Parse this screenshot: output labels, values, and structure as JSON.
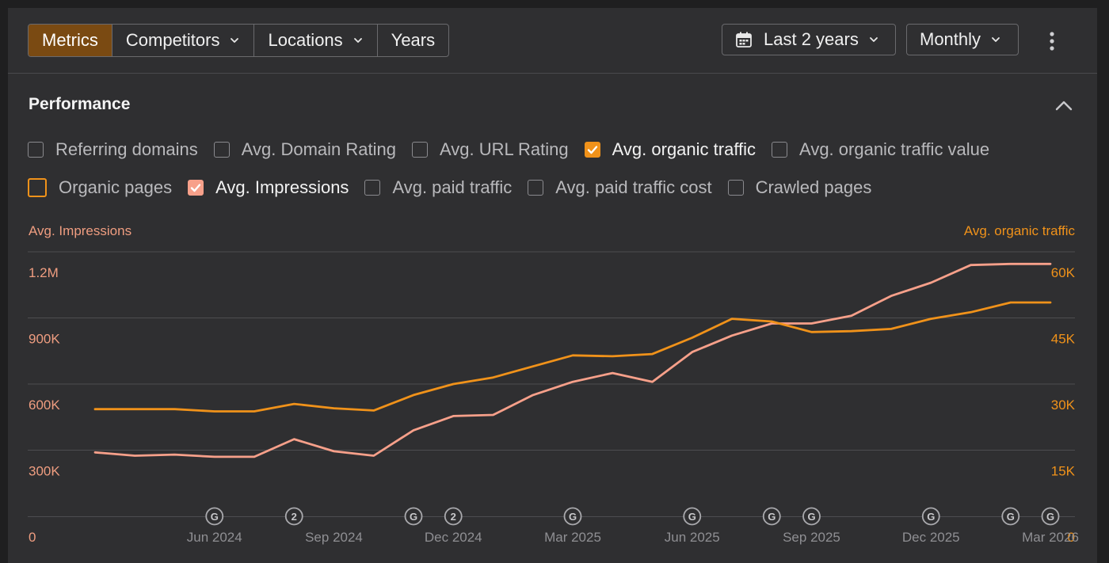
{
  "toolbar": {
    "tabs": [
      {
        "label": "Metrics",
        "active": true
      },
      {
        "label": "Competitors",
        "has_dropdown": true
      },
      {
        "label": "Locations",
        "has_dropdown": true
      },
      {
        "label": "Years",
        "has_dropdown": false
      }
    ],
    "date_range": {
      "label": "Last 2 years",
      "icon": "calendar-icon"
    },
    "interval": {
      "label": "Monthly"
    },
    "more_icon": "kebab-menu-icon"
  },
  "section": {
    "title": "Performance",
    "collapse_icon": "chevron-up-icon"
  },
  "metrics_row1": [
    {
      "label": "Referring domains",
      "checked": false
    },
    {
      "label": "Avg. Domain Rating",
      "checked": false
    },
    {
      "label": "Avg. URL Rating",
      "checked": false
    },
    {
      "label": "Avg. organic traffic",
      "checked": true,
      "color": "#f0921a"
    },
    {
      "label": "Avg. organic traffic value",
      "checked": false
    }
  ],
  "metrics_row2": [
    {
      "label": "Organic pages",
      "checked": false,
      "border_color": "#f0921a"
    },
    {
      "label": "Avg. Impressions",
      "checked": true,
      "color": "#f7a08a"
    },
    {
      "label": "Avg. paid traffic",
      "checked": false
    },
    {
      "label": "Avg. paid traffic cost",
      "checked": false
    },
    {
      "label": "Crawled pages",
      "checked": false
    }
  ],
  "colors": {
    "accent_active": "#7a4a12",
    "organic_traffic": "#f0921a",
    "impressions": "#f7a08a"
  },
  "chart_data": {
    "type": "line",
    "ylabel_left": "Avg. Impressions",
    "ylabel_right": "Avg. organic traffic",
    "yticks_left": [
      "1.2M",
      "900K",
      "600K",
      "300K",
      "0"
    ],
    "yticks_right": [
      "60K",
      "45K",
      "30K",
      "15K",
      "0"
    ],
    "ylim_left": [
      0,
      1200000
    ],
    "ylim_right": [
      0,
      60000
    ],
    "x_tick_labels": [
      "Jun 2024",
      "Sep 2024",
      "Dec 2024",
      "Mar 2025",
      "Jun 2025",
      "Sep 2025",
      "Dec 2025",
      "Mar 2026"
    ],
    "x": [
      "Mar 2024",
      "Apr 2024",
      "May 2024",
      "Jun 2024",
      "Jul 2024",
      "Aug 2024",
      "Sep 2024",
      "Oct 2024",
      "Nov 2024",
      "Dec 2024",
      "Jan 2025",
      "Feb 2025",
      "Mar 2025",
      "Apr 2025",
      "May 2025",
      "Jun 2025",
      "Jul 2025",
      "Aug 2025",
      "Sep 2025",
      "Oct 2025",
      "Nov 2025",
      "Dec 2025",
      "Jan 2026",
      "Feb 2026",
      "Mar 2026"
    ],
    "series": [
      {
        "name": "Avg. Impressions",
        "axis": "left",
        "color": "#f7a08a",
        "values": [
          290000,
          275000,
          280000,
          270000,
          270000,
          350000,
          295000,
          275000,
          390000,
          455000,
          460000,
          550000,
          610000,
          650000,
          610000,
          745000,
          820000,
          875000,
          875000,
          910000,
          1000000,
          1060000,
          1140000,
          1145000,
          1145000
        ]
      },
      {
        "name": "Avg. organic traffic",
        "axis": "right",
        "color": "#f0921a",
        "values": [
          24300,
          24300,
          24300,
          23800,
          23800,
          25500,
          24500,
          24000,
          27500,
          30000,
          31500,
          34000,
          36500,
          36300,
          36800,
          40500,
          44800,
          44200,
          41800,
          42000,
          42500,
          44800,
          46300,
          48500,
          48500
        ]
      }
    ],
    "grid": true,
    "event_markers": [
      {
        "label": "G",
        "x": "Jun 2024"
      },
      {
        "label": "2",
        "x": "Aug 2024"
      },
      {
        "label": "G",
        "x": "Nov 2024"
      },
      {
        "label": "2",
        "x": "Dec 2024"
      },
      {
        "label": "G",
        "x": "Mar 2025"
      },
      {
        "label": "G",
        "x": "Jun 2025"
      },
      {
        "label": "G",
        "x": "Aug 2025"
      },
      {
        "label": "G",
        "x": "Sep 2025"
      },
      {
        "label": "G",
        "x": "Dec 2025"
      },
      {
        "label": "G",
        "x": "Feb 2026"
      },
      {
        "label": "G",
        "x": "Mar 2026"
      }
    ]
  }
}
